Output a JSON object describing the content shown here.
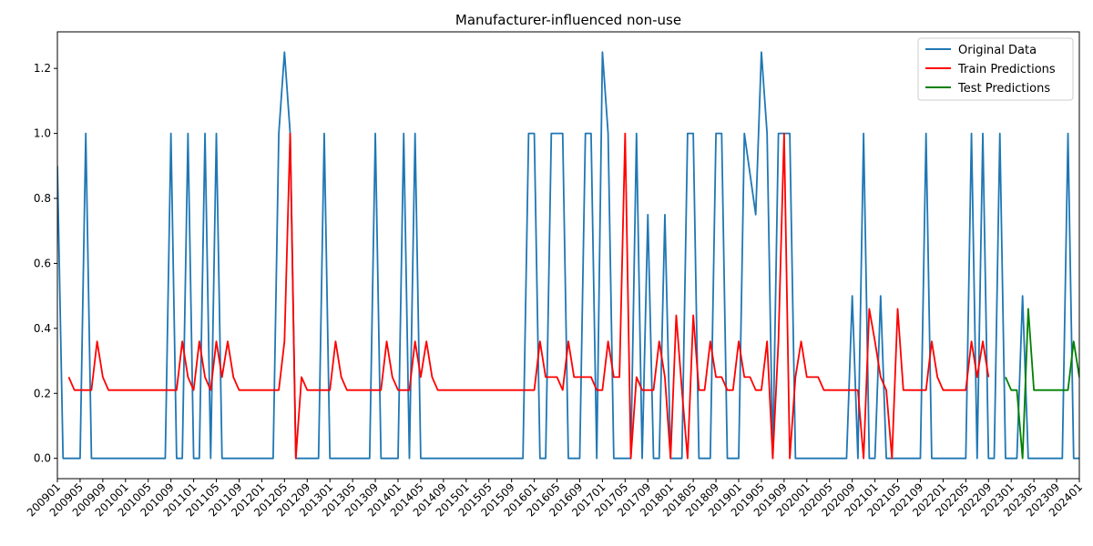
{
  "chart_data": {
    "type": "line",
    "title": "Manufacturer-influenced non-use",
    "xlabel": "",
    "ylabel": "",
    "ylim": [
      -0.0625,
      1.3125
    ],
    "yticks": [
      0.0,
      0.2,
      0.4,
      0.6,
      0.8,
      1.0,
      1.2
    ],
    "ytick_labels": [
      "0.0",
      "0.2",
      "0.4",
      "0.6",
      "0.8",
      "1.0",
      "1.2"
    ],
    "xtick_labels": [
      "200901",
      "200905",
      "200909",
      "201001",
      "201005",
      "201009",
      "201101",
      "201105",
      "201109",
      "201201",
      "201205",
      "201209",
      "201301",
      "201305",
      "201309",
      "201401",
      "201405",
      "201409",
      "201501",
      "201505",
      "201509",
      "201601",
      "201605",
      "201609",
      "201701",
      "201705",
      "201709",
      "201801",
      "201805",
      "201809",
      "201901",
      "201905",
      "201909",
      "202001",
      "202005",
      "202009",
      "202101",
      "202105",
      "202109",
      "202201",
      "202205",
      "202209",
      "202301",
      "202305",
      "202309",
      "202401"
    ],
    "x_start": "200901",
    "x_end": "202401",
    "legend_position": "upper right",
    "grid": false,
    "series": [
      {
        "name": "Original Data",
        "color": "#1f77b4",
        "points": [
          [
            "200901",
            0.9
          ],
          [
            "200902",
            0.0
          ],
          [
            "200905",
            0.0
          ],
          [
            "200906",
            1.0
          ],
          [
            "200907",
            0.0
          ],
          [
            "201008",
            0.0
          ],
          [
            "201009",
            1.0
          ],
          [
            "201010",
            0.0
          ],
          [
            "201011",
            0.0
          ],
          [
            "201012",
            1.0
          ],
          [
            "201101",
            0.0
          ],
          [
            "201102",
            0.0
          ],
          [
            "201103",
            1.0
          ],
          [
            "201104",
            0.0
          ],
          [
            "201105",
            1.0
          ],
          [
            "201106",
            0.0
          ],
          [
            "201203",
            0.0
          ],
          [
            "201204",
            1.0
          ],
          [
            "201205",
            1.25
          ],
          [
            "201206",
            1.0
          ],
          [
            "201207",
            0.0
          ],
          [
            "201211",
            0.0
          ],
          [
            "201212",
            1.0
          ],
          [
            "201301",
            0.0
          ],
          [
            "201308",
            0.0
          ],
          [
            "201309",
            1.0
          ],
          [
            "201310",
            0.0
          ],
          [
            "201401",
            0.0
          ],
          [
            "201402",
            1.0
          ],
          [
            "201403",
            0.0
          ],
          [
            "201404",
            1.0
          ],
          [
            "201405",
            0.0
          ],
          [
            "201511",
            0.0
          ],
          [
            "201512",
            1.0
          ],
          [
            "201601",
            1.0
          ],
          [
            "201602",
            0.0
          ],
          [
            "201603",
            0.0
          ],
          [
            "201604",
            1.0
          ],
          [
            "201606",
            1.0
          ],
          [
            "201607",
            0.0
          ],
          [
            "201609",
            0.0
          ],
          [
            "201610",
            1.0
          ],
          [
            "201611",
            1.0
          ],
          [
            "201612",
            0.0
          ],
          [
            "201701",
            1.25
          ],
          [
            "201702",
            1.0
          ],
          [
            "201703",
            0.0
          ],
          [
            "201706",
            0.0
          ],
          [
            "201707",
            1.0
          ],
          [
            "201708",
            0.0
          ],
          [
            "201709",
            0.75
          ],
          [
            "201710",
            0.0
          ],
          [
            "201711",
            0.0
          ],
          [
            "201712",
            0.75
          ],
          [
            "201801",
            0.0
          ],
          [
            "201803",
            0.0
          ],
          [
            "201804",
            1.0
          ],
          [
            "201805",
            1.0
          ],
          [
            "201806",
            0.0
          ],
          [
            "201808",
            0.0
          ],
          [
            "201809",
            1.0
          ],
          [
            "201810",
            1.0
          ],
          [
            "201811",
            0.0
          ],
          [
            "201901",
            0.0
          ],
          [
            "201902",
            1.0
          ],
          [
            "201904",
            0.75
          ],
          [
            "201905",
            1.25
          ],
          [
            "201906",
            1.0
          ],
          [
            "201907",
            0.0
          ],
          [
            "201908",
            1.0
          ],
          [
            "201910",
            1.0
          ],
          [
            "201911",
            0.0
          ],
          [
            "202008",
            0.0
          ],
          [
            "202009",
            0.5
          ],
          [
            "202010",
            0.0
          ],
          [
            "202011",
            1.0
          ],
          [
            "202012",
            0.0
          ],
          [
            "202101",
            0.0
          ],
          [
            "202102",
            0.5
          ],
          [
            "202103",
            0.0
          ],
          [
            "202109",
            0.0
          ],
          [
            "202110",
            1.0
          ],
          [
            "202111",
            0.0
          ],
          [
            "202205",
            0.0
          ],
          [
            "202206",
            1.0
          ],
          [
            "202207",
            0.0
          ],
          [
            "202208",
            1.0
          ],
          [
            "202209",
            0.0
          ],
          [
            "202210",
            0.0
          ],
          [
            "202211",
            1.0
          ],
          [
            "202212",
            0.0
          ],
          [
            "202302",
            0.0
          ],
          [
            "202303",
            0.5
          ],
          [
            "202304",
            0.0
          ],
          [
            "202310",
            0.0
          ],
          [
            "202311",
            1.0
          ],
          [
            "202312",
            0.0
          ],
          [
            "202403",
            0.0
          ]
        ]
      },
      {
        "name": "Train Predictions",
        "color": "#ff0000",
        "points": [
          [
            "200903",
            0.25
          ],
          [
            "200904",
            0.21
          ],
          [
            "200907",
            0.21
          ],
          [
            "200908",
            0.36
          ],
          [
            "200909",
            0.25
          ],
          [
            "200910",
            0.21
          ],
          [
            "201010",
            0.21
          ],
          [
            "201011",
            0.36
          ],
          [
            "201012",
            0.25
          ],
          [
            "201101",
            0.21
          ],
          [
            "201102",
            0.36
          ],
          [
            "201103",
            0.25
          ],
          [
            "201104",
            0.21
          ],
          [
            "201105",
            0.36
          ],
          [
            "201106",
            0.25
          ],
          [
            "201107",
            0.36
          ],
          [
            "201108",
            0.25
          ],
          [
            "201109",
            0.21
          ],
          [
            "201204",
            0.21
          ],
          [
            "201205",
            0.36
          ],
          [
            "201206",
            1.0
          ],
          [
            "201207",
            0.0
          ],
          [
            "201208",
            0.25
          ],
          [
            "201209",
            0.21
          ],
          [
            "201301",
            0.21
          ],
          [
            "201302",
            0.36
          ],
          [
            "201303",
            0.25
          ],
          [
            "201304",
            0.21
          ],
          [
            "201310",
            0.21
          ],
          [
            "201311",
            0.36
          ],
          [
            "201312",
            0.25
          ],
          [
            "201401",
            0.21
          ],
          [
            "201403",
            0.21
          ],
          [
            "201404",
            0.36
          ],
          [
            "201405",
            0.25
          ],
          [
            "201406",
            0.36
          ],
          [
            "201407",
            0.25
          ],
          [
            "201408",
            0.21
          ],
          [
            "201601",
            0.21
          ],
          [
            "201602",
            0.36
          ],
          [
            "201603",
            0.25
          ],
          [
            "201605",
            0.25
          ],
          [
            "201606",
            0.21
          ],
          [
            "201607",
            0.36
          ],
          [
            "201608",
            0.25
          ],
          [
            "201611",
            0.25
          ],
          [
            "201612",
            0.21
          ],
          [
            "201701",
            0.21
          ],
          [
            "201702",
            0.36
          ],
          [
            "201703",
            0.25
          ],
          [
            "201704",
            0.25
          ],
          [
            "201705",
            1.0
          ],
          [
            "201706",
            0.0
          ],
          [
            "201707",
            0.25
          ],
          [
            "201708",
            0.21
          ],
          [
            "201710",
            0.21
          ],
          [
            "201711",
            0.36
          ],
          [
            "201712",
            0.25
          ],
          [
            "201801",
            0.0
          ],
          [
            "201802",
            0.44
          ],
          [
            "201803",
            0.21
          ],
          [
            "201804",
            0.0
          ],
          [
            "201805",
            0.44
          ],
          [
            "201806",
            0.21
          ],
          [
            "201807",
            0.21
          ],
          [
            "201808",
            0.36
          ],
          [
            "201809",
            0.25
          ],
          [
            "201810",
            0.25
          ],
          [
            "201811",
            0.21
          ],
          [
            "201812",
            0.21
          ],
          [
            "201901",
            0.36
          ],
          [
            "201902",
            0.25
          ],
          [
            "201903",
            0.25
          ],
          [
            "201904",
            0.21
          ],
          [
            "201905",
            0.21
          ],
          [
            "201906",
            0.36
          ],
          [
            "201907",
            0.0
          ],
          [
            "201908",
            0.36
          ],
          [
            "201909",
            1.0
          ],
          [
            "201910",
            0.0
          ],
          [
            "201911",
            0.25
          ],
          [
            "201912",
            0.36
          ],
          [
            "202001",
            0.25
          ],
          [
            "202003",
            0.25
          ],
          [
            "202004",
            0.21
          ],
          [
            "202010",
            0.21
          ],
          [
            "202011",
            0.0
          ],
          [
            "202012",
            0.46
          ],
          [
            "202101",
            0.36
          ],
          [
            "202102",
            0.25
          ],
          [
            "202103",
            0.21
          ],
          [
            "202104",
            0.0
          ],
          [
            "202105",
            0.46
          ],
          [
            "202106",
            0.21
          ],
          [
            "202110",
            0.21
          ],
          [
            "202111",
            0.36
          ],
          [
            "202112",
            0.25
          ],
          [
            "202201",
            0.21
          ],
          [
            "202205",
            0.21
          ],
          [
            "202206",
            0.36
          ],
          [
            "202207",
            0.25
          ],
          [
            "202208",
            0.36
          ],
          [
            "202209",
            0.25
          ]
        ]
      },
      {
        "name": "Test Predictions",
        "color": "#008000",
        "points": [
          [
            "202212",
            0.25
          ],
          [
            "202301",
            0.21
          ],
          [
            "202302",
            0.21
          ],
          [
            "202303",
            0.0
          ],
          [
            "202304",
            0.46
          ],
          [
            "202305",
            0.21
          ],
          [
            "202311",
            0.21
          ],
          [
            "202312",
            0.36
          ],
          [
            "202401",
            0.25
          ],
          [
            "202402",
            0.21
          ],
          [
            "202404",
            0.21
          ]
        ]
      }
    ]
  }
}
